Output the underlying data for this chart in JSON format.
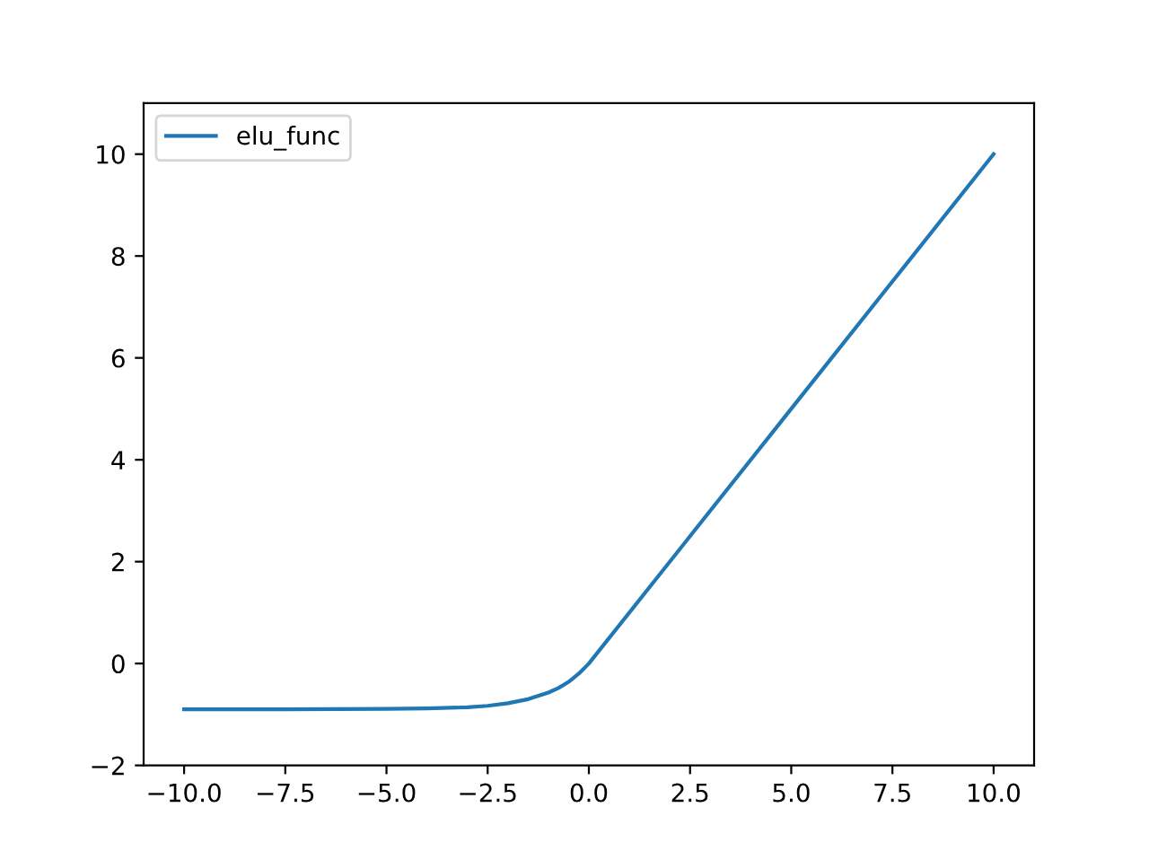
{
  "chart_data": {
    "type": "line",
    "x": [
      -10,
      -7.5,
      -5,
      -4,
      -3,
      -2.5,
      -2,
      -1.5,
      -1,
      -0.75,
      -0.5,
      -0.25,
      0,
      2.5,
      5,
      7.5,
      10
    ],
    "series": [
      {
        "name": "elu_func",
        "color": "#1f77b4",
        "values": [
          -0.9,
          -0.9,
          -0.89,
          -0.88,
          -0.86,
          -0.83,
          -0.78,
          -0.7,
          -0.57,
          -0.48,
          -0.36,
          -0.2,
          0,
          2.5,
          5,
          7.5,
          10
        ]
      }
    ],
    "xlim": [
      -11,
      11
    ],
    "ylim": [
      -2,
      11
    ],
    "xticks": [
      {
        "value": -10,
        "label": "−10.0"
      },
      {
        "value": -7.5,
        "label": "−7.5"
      },
      {
        "value": -5,
        "label": "−5.0"
      },
      {
        "value": -2.5,
        "label": "−2.5"
      },
      {
        "value": 0,
        "label": "0.0"
      },
      {
        "value": 2.5,
        "label": "2.5"
      },
      {
        "value": 5,
        "label": "5.0"
      },
      {
        "value": 7.5,
        "label": "7.5"
      },
      {
        "value": 10,
        "label": "10.0"
      }
    ],
    "yticks": [
      {
        "value": -2,
        "label": "−2"
      },
      0,
      2,
      4,
      6,
      8,
      10
    ],
    "legend": "top left",
    "grid": false
  }
}
